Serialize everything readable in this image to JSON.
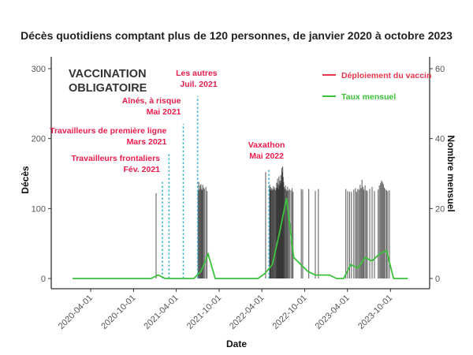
{
  "chart_data": {
    "type": "bar+line",
    "title": "Décès quotidiens comptant plus de 120 personnes, de janvier 2020 à octobre 2023",
    "xlabel": "Date",
    "ylabel": "Décès",
    "ylabel_right": "Nombre mensuel",
    "ylim": [
      0,
      300
    ],
    "ylim_right": [
      0,
      60
    ],
    "yticks": [
      "0",
      "100",
      "200",
      "300"
    ],
    "yticks_right": [
      "0",
      "20",
      "40",
      "60"
    ],
    "xticks": [
      "2020-04-01",
      "2020-10-01",
      "2021-04-01",
      "2021-10-01",
      "2022-04-01",
      "2022-10-01",
      "2023-04-01",
      "2023-10-01"
    ],
    "banner": [
      "VACCINATION",
      "OBLIGATOIRE"
    ],
    "legend": {
      "position": "top-right",
      "items": [
        {
          "label": "Déploiement du vaccin",
          "color": "#e8364f"
        },
        {
          "label": "Taux mensuel",
          "color": "#3cc13c"
        }
      ]
    },
    "colors": {
      "bars": "#111111",
      "line": "#3cc13c",
      "vline": "#3fb6d4",
      "annotation": "#ea1c4c"
    },
    "vaccine_events": [
      {
        "date": "2021-02-01",
        "lines": [
          "Travailleurs frontaliers",
          "Fév. 2021"
        ]
      },
      {
        "date": "2021-03-01",
        "lines": [
          "Travailleurs de première ligne",
          "Mars 2021"
        ]
      },
      {
        "date": "2021-05-01",
        "lines": [
          "Aînés, à risque",
          "Mai 2021"
        ]
      },
      {
        "date": "2021-07-01",
        "lines": [
          "Les autres",
          "Juil. 2021"
        ]
      },
      {
        "date": "2022-05-01",
        "lines": [
          "Vaxathon",
          "Mai 2022"
        ]
      }
    ],
    "daily_deaths": [
      [
        "2021-01-05",
        122
      ],
      [
        "2021-07-03",
        125
      ],
      [
        "2021-07-06",
        138
      ],
      [
        "2021-07-09",
        127
      ],
      [
        "2021-07-12",
        133
      ],
      [
        "2021-07-15",
        135
      ],
      [
        "2021-07-18",
        128
      ],
      [
        "2021-07-20",
        126
      ],
      [
        "2021-07-23",
        134
      ],
      [
        "2021-07-26",
        130
      ],
      [
        "2021-07-30",
        128
      ],
      [
        "2021-08-05",
        131
      ],
      [
        "2021-08-10",
        125
      ],
      [
        "2022-04-17",
        152
      ],
      [
        "2022-05-04",
        134
      ],
      [
        "2022-05-06",
        128
      ],
      [
        "2022-05-08",
        131
      ],
      [
        "2022-05-10",
        126
      ],
      [
        "2022-05-13",
        129
      ],
      [
        "2022-05-15",
        126
      ],
      [
        "2022-05-18",
        128
      ],
      [
        "2022-05-20",
        132
      ],
      [
        "2022-05-23",
        127
      ],
      [
        "2022-05-26",
        130
      ],
      [
        "2022-05-29",
        126
      ],
      [
        "2022-06-01",
        129
      ],
      [
        "2022-06-03",
        137
      ],
      [
        "2022-06-05",
        130
      ],
      [
        "2022-06-07",
        143
      ],
      [
        "2022-06-09",
        135
      ],
      [
        "2022-06-11",
        128
      ],
      [
        "2022-06-13",
        146
      ],
      [
        "2022-06-15",
        133
      ],
      [
        "2022-06-17",
        140
      ],
      [
        "2022-06-19",
        136
      ],
      [
        "2022-06-21",
        148
      ],
      [
        "2022-06-23",
        139
      ],
      [
        "2022-06-25",
        158
      ],
      [
        "2022-06-27",
        152
      ],
      [
        "2022-06-29",
        160
      ],
      [
        "2022-07-01",
        145
      ],
      [
        "2022-07-03",
        138
      ],
      [
        "2022-07-05",
        131
      ],
      [
        "2022-07-08",
        128
      ],
      [
        "2022-07-11",
        133
      ],
      [
        "2022-07-14",
        127
      ],
      [
        "2022-07-17",
        125
      ],
      [
        "2022-07-20",
        131
      ],
      [
        "2022-07-24",
        126
      ],
      [
        "2022-07-28",
        128
      ],
      [
        "2022-08-03",
        126
      ],
      [
        "2022-08-08",
        129
      ],
      [
        "2022-08-12",
        124
      ],
      [
        "2022-09-16",
        128
      ],
      [
        "2022-09-22",
        127
      ],
      [
        "2022-10-18",
        128
      ],
      [
        "2022-11-15",
        125
      ],
      [
        "2022-11-28",
        128
      ],
      [
        "2023-03-25",
        128
      ],
      [
        "2023-04-02",
        125
      ],
      [
        "2023-04-10",
        124
      ],
      [
        "2023-04-18",
        124
      ],
      [
        "2023-04-28",
        127
      ],
      [
        "2023-05-05",
        129
      ],
      [
        "2023-05-10",
        124
      ],
      [
        "2023-05-15",
        128
      ],
      [
        "2023-05-20",
        127
      ],
      [
        "2023-05-25",
        134
      ],
      [
        "2023-05-29",
        129
      ],
      [
        "2023-06-02",
        141
      ],
      [
        "2023-06-06",
        131
      ],
      [
        "2023-06-10",
        127
      ],
      [
        "2023-06-15",
        133
      ],
      [
        "2023-06-20",
        126
      ],
      [
        "2023-06-25",
        125
      ],
      [
        "2023-07-05",
        128
      ],
      [
        "2023-07-15",
        131
      ],
      [
        "2023-07-25",
        125
      ],
      [
        "2023-08-10",
        127
      ],
      [
        "2023-08-15",
        133
      ],
      [
        "2023-08-20",
        136
      ],
      [
        "2023-08-24",
        140
      ],
      [
        "2023-08-28",
        138
      ],
      [
        "2023-09-01",
        135
      ],
      [
        "2023-09-05",
        130
      ],
      [
        "2023-09-10",
        128
      ],
      [
        "2023-09-15",
        126
      ],
      [
        "2023-09-20",
        125
      ],
      [
        "2023-09-27",
        126
      ]
    ],
    "monthly_rate": {
      "start_month": "2020-01",
      "values": [
        0,
        0,
        0,
        0,
        0,
        0,
        0,
        0,
        0,
        0,
        0,
        0,
        1,
        0,
        0,
        0,
        0,
        0,
        2,
        7,
        0,
        0,
        0,
        0,
        0,
        0,
        0,
        1.5,
        4,
        13,
        23,
        6,
        4,
        2,
        1,
        1,
        1,
        0,
        0,
        4,
        3,
        6,
        5,
        7,
        8,
        0,
        0,
        0
      ]
    }
  }
}
